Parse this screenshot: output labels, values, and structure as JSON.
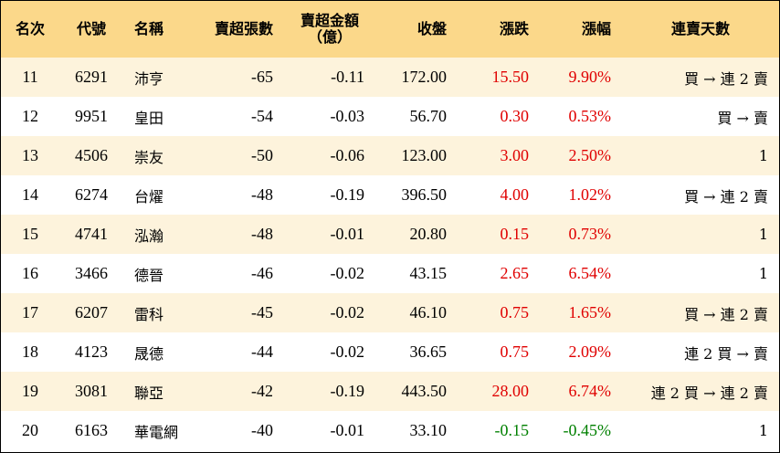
{
  "table": {
    "headers": [
      "名次",
      "代號",
      "名稱",
      "賣超張數",
      "賣超金額\n（億）",
      "收盤",
      "漲跌",
      "漲幅",
      "連賣天數"
    ],
    "rows": [
      [
        "11",
        "6291",
        "沛亨",
        "-65",
        "-0.11",
        "172.00",
        "15.50",
        "9.90%",
        "買 → 連 2 賣"
      ],
      [
        "12",
        "9951",
        "皇田",
        "-54",
        "-0.03",
        "56.70",
        "0.30",
        "0.53%",
        "買 → 賣"
      ],
      [
        "13",
        "4506",
        "崇友",
        "-50",
        "-0.06",
        "123.00",
        "3.00",
        "2.50%",
        "1"
      ],
      [
        "14",
        "6274",
        "台燿",
        "-48",
        "-0.19",
        "396.50",
        "4.00",
        "1.02%",
        "買 → 連 2 賣"
      ],
      [
        "15",
        "4741",
        "泓瀚",
        "-48",
        "-0.01",
        "20.80",
        "0.15",
        "0.73%",
        "1"
      ],
      [
        "16",
        "3466",
        "德晉",
        "-46",
        "-0.02",
        "43.15",
        "2.65",
        "6.54%",
        "1"
      ],
      [
        "17",
        "6207",
        "雷科",
        "-45",
        "-0.02",
        "46.10",
        "0.75",
        "1.65%",
        "買 → 連 2 賣"
      ],
      [
        "18",
        "4123",
        "晟德",
        "-44",
        "-0.02",
        "36.65",
        "0.75",
        "2.09%",
        "連 2 買 → 賣"
      ],
      [
        "19",
        "3081",
        "聯亞",
        "-42",
        "-0.19",
        "443.50",
        "28.00",
        "6.74%",
        "連 2 買 → 連 2 賣"
      ],
      [
        "20",
        "6163",
        "華電網",
        "-40",
        "-0.01",
        "33.10",
        "-0.15",
        "-0.45%",
        "1"
      ]
    ]
  }
}
